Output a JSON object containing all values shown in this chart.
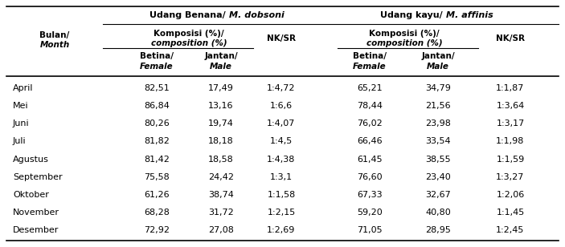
{
  "months": [
    "April",
    "Mei",
    "Juni",
    "Juli",
    "Agustus",
    "September",
    "Oktober",
    "November",
    "Desember"
  ],
  "benana_female": [
    "82,51",
    "86,84",
    "80,26",
    "81,82",
    "81,42",
    "75,58",
    "61,26",
    "68,28",
    "72,92"
  ],
  "benana_male": [
    "17,49",
    "13,16",
    "19,74",
    "18,18",
    "18,58",
    "24,42",
    "38,74",
    "31,72",
    "27,08"
  ],
  "benana_nksr": [
    "1:4,72",
    "1:6,6",
    "1:4,07",
    "1:4,5",
    "1:4,38",
    "1:3,1",
    "1:1,58",
    "1:2,15",
    "1:2,69"
  ],
  "kayu_female": [
    "65,21",
    "78,44",
    "76,02",
    "66,46",
    "61,45",
    "76,60",
    "67,33",
    "59,20",
    "71,05"
  ],
  "kayu_male": [
    "34,79",
    "21,56",
    "23,98",
    "33,54",
    "38,55",
    "23,40",
    "32,67",
    "40,80",
    "28,95"
  ],
  "kayu_nksr": [
    "1:1,87",
    "1:3,64",
    "1:3,17",
    "1:1,98",
    "1:1,59",
    "1:3,27",
    "1:2,06",
    "1:1,45",
    "1:2,45"
  ],
  "bg_color": "#ffffff",
  "text_color": "#000000",
  "header_row1_text_benana_normal": "Udang Benana/ ",
  "header_row1_text_benana_italic": "M. dobsoni",
  "header_row1_text_kayu_normal": "Udang kayu/ ",
  "header_row1_text_kayu_italic": "M. affinis",
  "col_month_normal": "Bulan/",
  "col_month_italic": "Month",
  "col_komposisi_normal": "Komposisi (%)/ ",
  "col_komposisi_italic": "composition (%)",
  "col_nksr": "NK/SR",
  "col_betina_normal": "Betina/",
  "col_betina_italic": "Female",
  "col_jantan_normal": "Jantan/",
  "col_jantan_italic": "Male",
  "fs_title": 8.0,
  "fs_header": 7.5,
  "fs_sub": 7.5,
  "fs_data": 8.0,
  "lw_thick": 1.2,
  "lw_thin": 0.8
}
